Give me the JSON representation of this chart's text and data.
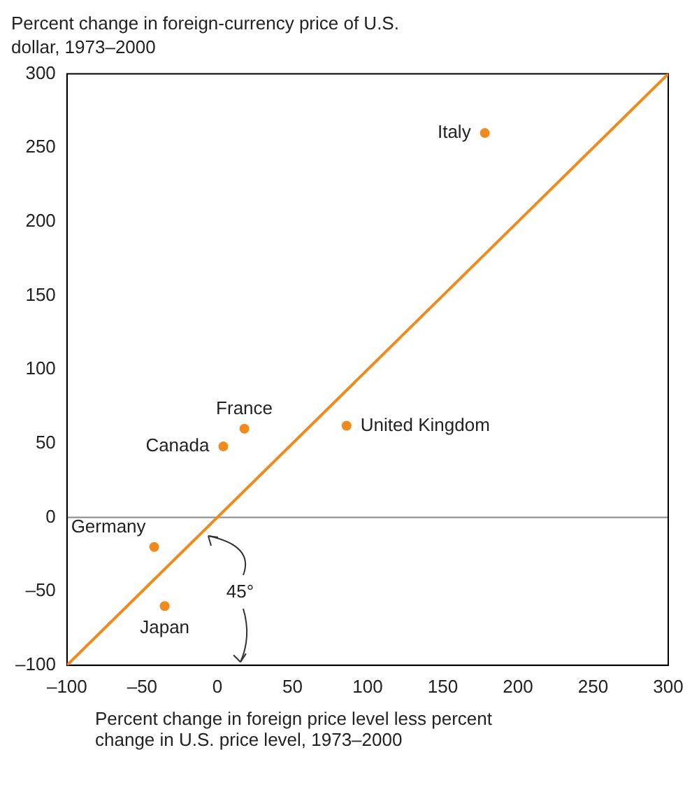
{
  "chart_data": {
    "type": "scatter",
    "xlabel": "Percent change in foreign price level less percent change in U.S. price level, 1973–2000",
    "ylabel": "Percent change in foreign-currency price of U.S. dollar, 1973–2000",
    "series": [
      {
        "type": "line",
        "color": "#f08a1c",
        "x": [
          -100,
          300
        ],
        "values": [
          -100,
          300
        ],
        "marker": "none"
      },
      {
        "name": "Italy",
        "color": "#f08a1c",
        "x": [
          178
        ],
        "values": [
          260
        ]
      },
      {
        "name": "France",
        "color": "#f08a1c",
        "x": [
          18
        ],
        "values": [
          60
        ]
      },
      {
        "name": "Canada",
        "color": "#f08a1c",
        "x": [
          4
        ],
        "values": [
          48
        ]
      },
      {
        "name": "United Kingdom",
        "color": "#f08a1c",
        "x": [
          86
        ],
        "values": [
          62
        ]
      },
      {
        "name": "Germany",
        "color": "#f08a1c",
        "x": [
          -42
        ],
        "values": [
          -20
        ]
      },
      {
        "name": "Japan",
        "color": "#f08a1c",
        "x": [
          -35
        ],
        "values": [
          -60
        ]
      }
    ],
    "xlim": [
      -100,
      300
    ],
    "xticks": [
      {
        "value": -100,
        "label": "–100"
      },
      {
        "value": -50,
        "label": "–50"
      },
      0,
      50,
      100,
      150,
      200,
      250,
      300
    ],
    "ylim": [
      -100,
      300
    ],
    "yticks": [
      {
        "value": -100,
        "label": "–100"
      },
      {
        "value": -50,
        "label": "–50"
      },
      0,
      50,
      100,
      150,
      200,
      250,
      300
    ],
    "ref_lines": [
      {
        "axis": "y",
        "value": 0,
        "color": "#888888"
      }
    ],
    "annotations": [
      {
        "text": "45°",
        "x": -10,
        "y": -10
      }
    ],
    "marker": "circle",
    "grid": false,
    "legend": false
  }
}
